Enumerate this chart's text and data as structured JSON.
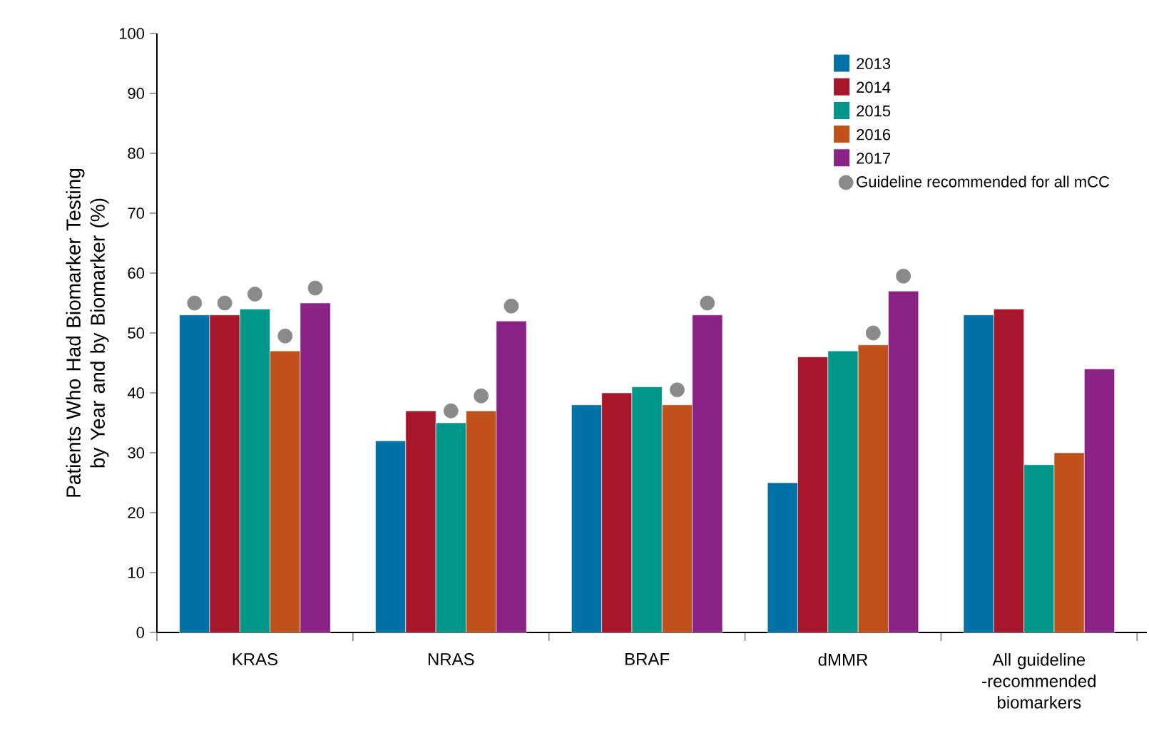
{
  "chart_data": {
    "type": "bar",
    "ylabel": "Patients Who Had Biomarker Testing by Year and by Biomarker (%)",
    "categories": [
      "KRAS",
      "NRAS",
      "BRAF",
      "dMMR",
      "All guideline -recommended biomarkers"
    ],
    "series": [
      {
        "name": "2013",
        "color": "#0072a8",
        "values": [
          53,
          32,
          38,
          25,
          53
        ]
      },
      {
        "name": "2014",
        "color": "#a8162c",
        "values": [
          53,
          37,
          40,
          46,
          54
        ]
      },
      {
        "name": "2015",
        "color": "#00968a",
        "values": [
          54,
          35,
          41,
          47,
          28
        ]
      },
      {
        "name": "2016",
        "color": "#c0511a",
        "values": [
          47,
          37,
          38,
          48,
          30
        ]
      },
      {
        "name": "2017",
        "color": "#8b2285",
        "values": [
          55,
          52,
          53,
          57,
          44
        ]
      },
      {
        "name": "Guideline recommended for all mCC",
        "type": "scatter",
        "marker": "circle",
        "color": "#8a8a8a",
        "x": [
          "KRAS",
          "KRAS",
          "KRAS",
          "KRAS",
          "KRAS",
          "NRAS",
          "NRAS",
          "NRAS",
          "NRAS",
          "NRAS",
          "BRAF",
          "BRAF",
          "BRAF",
          "BRAF",
          "BRAF",
          "dMMR",
          "dMMR",
          "dMMR",
          "dMMR",
          "dMMR",
          "All guideline -recommended biomarkers",
          "All guideline -recommended biomarkers",
          "All guideline -recommended biomarkers",
          "All guideline -recommended biomarkers",
          "All guideline -recommended biomarkers"
        ],
        "values": [
          55,
          55,
          56.5,
          49.5,
          57.5,
          null,
          null,
          37,
          39.5,
          54.5,
          null,
          null,
          null,
          40.5,
          55,
          null,
          null,
          null,
          50,
          59.5,
          null,
          null,
          null,
          null,
          null
        ]
      }
    ],
    "ylim": [
      0,
      100
    ],
    "yticks": [
      0,
      10,
      20,
      30,
      40,
      50,
      60,
      70,
      80,
      90,
      100
    ],
    "legend": "top right"
  }
}
